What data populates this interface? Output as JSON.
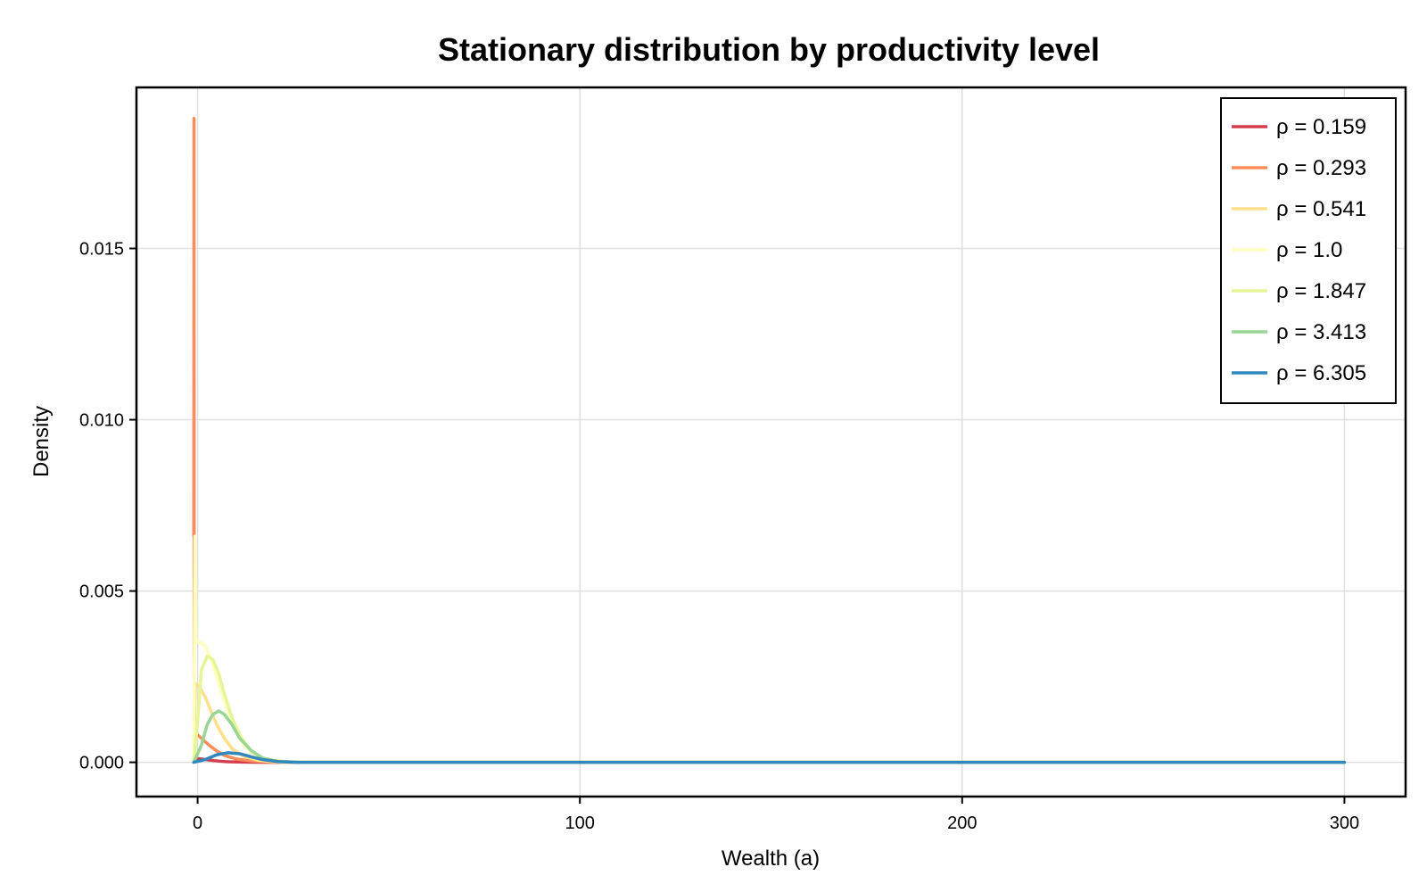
{
  "chart_data": {
    "type": "line",
    "title": "Stationary distribution by productivity level",
    "xlabel": "Wealth (a)",
    "ylabel": "Density",
    "xlim": [
      -16,
      316
    ],
    "ylim": [
      -0.001,
      0.0197
    ],
    "xticks": [
      0,
      100,
      200,
      300
    ],
    "xtick_labels": [
      "0",
      "100",
      "200",
      "300"
    ],
    "yticks": [
      0.0,
      0.005,
      0.01,
      0.015
    ],
    "ytick_labels": [
      "0.000",
      "0.005",
      "0.010",
      "0.015"
    ],
    "grid": true,
    "legend_position": "top-right",
    "series": [
      {
        "name": "ρ = 0.159",
        "color": "#d53e4f",
        "points": [
          [
            -1.0,
            0.0
          ],
          [
            -0.95,
            0.00012
          ],
          [
            0.0,
            0.00011
          ],
          [
            2.0,
            8e-05
          ],
          [
            4.0,
            5e-05
          ],
          [
            6.0,
            3e-05
          ],
          [
            8.0,
            1.5e-05
          ],
          [
            12.0,
            5e-06
          ],
          [
            18.0,
            0.0
          ],
          [
            300.0,
            0.0
          ]
        ]
      },
      {
        "name": "ρ = 0.293",
        "color": "#fc8d59",
        "points": [
          [
            -1.0,
            0.0066
          ],
          [
            -0.95,
            0.0188
          ],
          [
            -0.9,
            0.0007
          ],
          [
            0.0,
            0.0008
          ],
          [
            1.5,
            0.00065
          ],
          [
            3.0,
            0.0005
          ],
          [
            5.0,
            0.00033
          ],
          [
            7.0,
            0.0002
          ],
          [
            10.0,
            0.0001
          ],
          [
            14.0,
            4e-05
          ],
          [
            20.0,
            5e-06
          ],
          [
            26.0,
            0.0
          ],
          [
            300.0,
            0.0
          ]
        ]
      },
      {
        "name": "ρ = 0.541",
        "color": "#fee08b",
        "points": [
          [
            -1.0,
            0.0
          ],
          [
            -0.6,
            0.0023
          ],
          [
            0.5,
            0.0022
          ],
          [
            2.0,
            0.0019
          ],
          [
            3.5,
            0.0015
          ],
          [
            5.0,
            0.0011
          ],
          [
            7.0,
            0.0007
          ],
          [
            9.0,
            0.0004
          ],
          [
            12.0,
            0.00018
          ],
          [
            16.0,
            5e-05
          ],
          [
            22.0,
            0.0
          ],
          [
            300.0,
            0.0
          ]
        ]
      },
      {
        "name": "ρ = 1.0",
        "color": "#ffffbf",
        "points": [
          [
            -1.0,
            0.0
          ],
          [
            -0.7,
            0.0066
          ],
          [
            -0.4,
            0.0035
          ],
          [
            0.5,
            0.0035
          ],
          [
            2.0,
            0.0034
          ],
          [
            3.5,
            0.003
          ],
          [
            5.0,
            0.0025
          ],
          [
            7.0,
            0.0018
          ],
          [
            9.0,
            0.0011
          ],
          [
            12.0,
            0.0005
          ],
          [
            16.0,
            0.00015
          ],
          [
            22.0,
            2e-05
          ],
          [
            28.0,
            0.0
          ],
          [
            300.0,
            0.0
          ]
        ]
      },
      {
        "name": "ρ = 1.847",
        "color": "#e6f598",
        "points": [
          [
            -1.0,
            0.0
          ],
          [
            0.0,
            0.0012
          ],
          [
            1.0,
            0.0027
          ],
          [
            2.5,
            0.0031
          ],
          [
            4.0,
            0.003
          ],
          [
            5.5,
            0.0026
          ],
          [
            7.0,
            0.002
          ],
          [
            9.0,
            0.0013
          ],
          [
            11.0,
            0.0008
          ],
          [
            14.0,
            0.0003
          ],
          [
            18.0,
            8e-05
          ],
          [
            24.0,
            1e-05
          ],
          [
            30.0,
            0.0
          ],
          [
            300.0,
            0.0
          ]
        ]
      },
      {
        "name": "ρ = 3.413",
        "color": "#99d594",
        "points": [
          [
            -1.0,
            0.0
          ],
          [
            1.0,
            0.0005
          ],
          [
            2.5,
            0.0011
          ],
          [
            4.0,
            0.0014
          ],
          [
            5.5,
            0.0015
          ],
          [
            7.0,
            0.0014
          ],
          [
            9.0,
            0.0011
          ],
          [
            11.0,
            0.0007
          ],
          [
            14.0,
            0.00035
          ],
          [
            17.0,
            0.00012
          ],
          [
            21.0,
            3e-05
          ],
          [
            27.0,
            0.0
          ],
          [
            300.0,
            0.0
          ]
        ]
      },
      {
        "name": "ρ = 6.305",
        "color": "#3288bd",
        "points": [
          [
            -1.0,
            0.0
          ],
          [
            2.0,
            8e-05
          ],
          [
            5.0,
            0.00022
          ],
          [
            8.0,
            0.00028
          ],
          [
            11.0,
            0.00025
          ],
          [
            14.0,
            0.00016
          ],
          [
            17.0,
            8e-05
          ],
          [
            21.0,
            2e-05
          ],
          [
            26.0,
            0.0
          ],
          [
            300.0,
            0.0
          ]
        ]
      }
    ]
  }
}
